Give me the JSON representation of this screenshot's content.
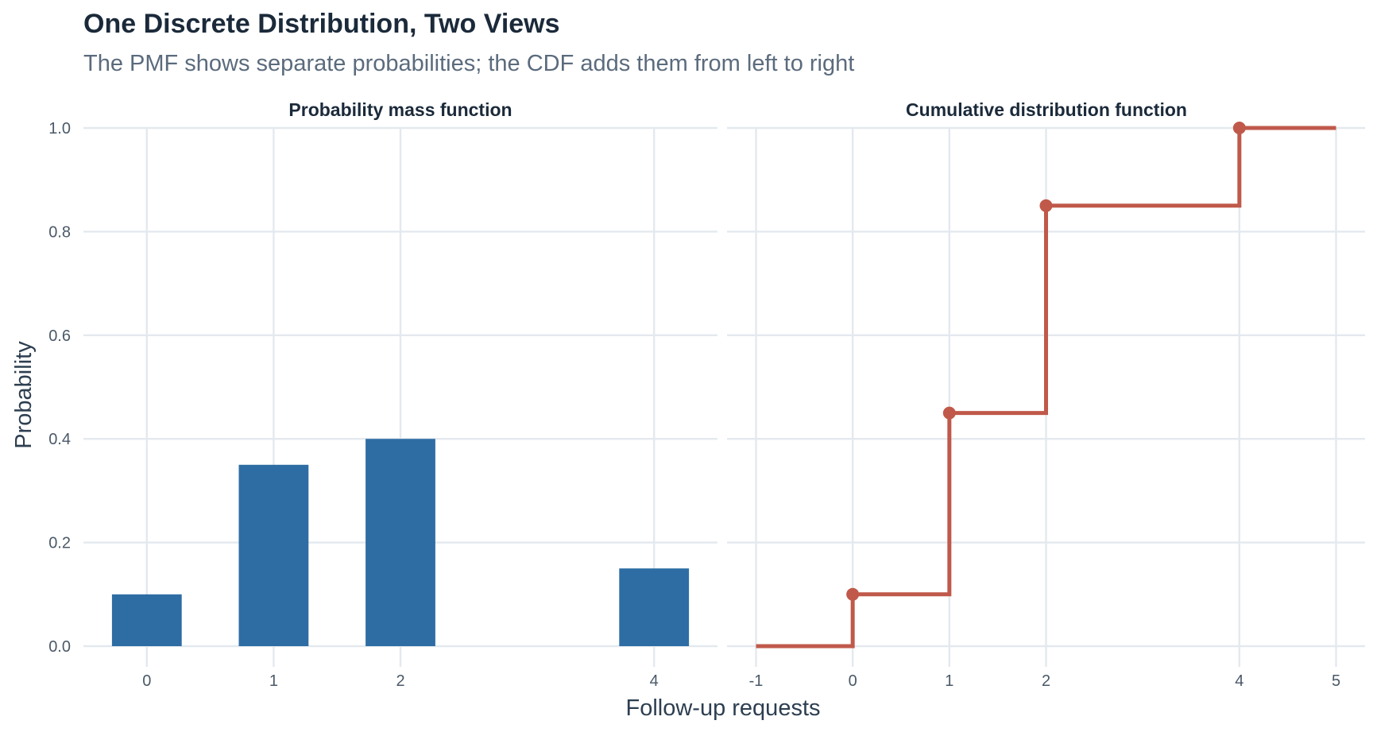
{
  "title": "One Discrete Distribution, Two Views",
  "subtitle": "The PMF shows separate probabilities; the CDF adds them from left to right",
  "xlabel": "Follow-up requests",
  "ylabel": "Probability",
  "colors": {
    "pmf_bar": "#2e6da4",
    "cdf_line": "#c0594a",
    "grid": "#e4e9ef",
    "title": "#1b2a3a",
    "subtitle": "#5b6b7d",
    "tick": "#4a5968"
  },
  "chart_data": [
    {
      "type": "bar",
      "facet_title": "Probability mass function",
      "categories": [
        "0",
        "1",
        "2",
        "4"
      ],
      "x": [
        0,
        1,
        2,
        4
      ],
      "values": [
        0.1,
        0.35,
        0.4,
        0.15
      ],
      "xticks": [
        "0",
        "1",
        "2",
        "4"
      ],
      "xtick_values": [
        0,
        1,
        2,
        4
      ],
      "yticks": [
        "0.0",
        "0.2",
        "0.4",
        "0.6",
        "0.8",
        "1.0"
      ],
      "ytick_values": [
        0.0,
        0.2,
        0.4,
        0.6,
        0.8,
        1.0
      ],
      "xlim": [
        -0.5,
        4.5
      ],
      "ylim": [
        0,
        1.0
      ],
      "grid": true
    },
    {
      "type": "line",
      "facet_title": "Cumulative distribution function",
      "step": true,
      "x": [
        -1,
        0,
        1,
        2,
        4,
        5
      ],
      "values": [
        0.0,
        0.1,
        0.45,
        0.85,
        1.0,
        1.0
      ],
      "points": [
        {
          "x": 0,
          "y": 0.1
        },
        {
          "x": 1,
          "y": 0.45
        },
        {
          "x": 2,
          "y": 0.85
        },
        {
          "x": 4,
          "y": 1.0
        }
      ],
      "xticks": [
        "-1",
        "0",
        "1",
        "2",
        "4",
        "5"
      ],
      "xtick_values": [
        -1,
        0,
        1,
        2,
        4,
        5
      ],
      "yticks": [
        "0.0",
        "0.2",
        "0.4",
        "0.6",
        "0.8",
        "1.0"
      ],
      "ytick_values": [
        0.0,
        0.2,
        0.4,
        0.6,
        0.8,
        1.0
      ],
      "xlim": [
        -1,
        5
      ],
      "ylim": [
        0,
        1.0
      ],
      "grid": true
    }
  ]
}
